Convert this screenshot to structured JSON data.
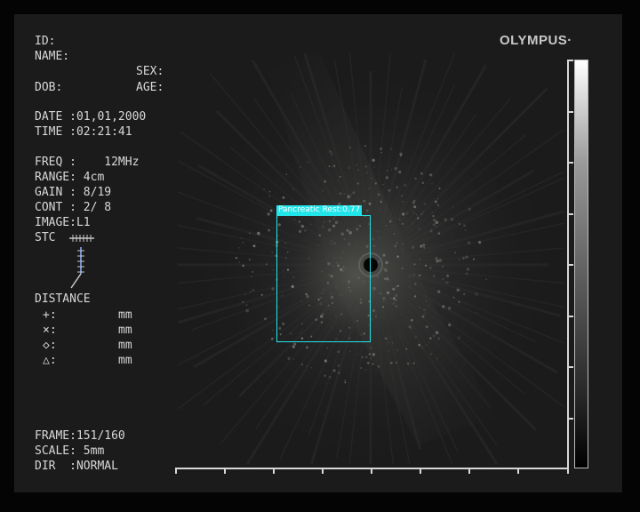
{
  "brand": {
    "logo": "OLYMPUS·"
  },
  "patient": {
    "id_label": "ID:",
    "name_label": "NAME:",
    "sex_label": "SEX:",
    "dob_label": "DOB:",
    "age_label": "AGE:",
    "date": "DATE :01,01,2000",
    "time": "TIME :02:21:41"
  },
  "settings": {
    "freq": "FREQ :    12MHz",
    "range": "RANGE: 4cm",
    "gain": "GAIN : 8/19",
    "cont": "CONT : 2/ 8",
    "image": "IMAGE:L1",
    "stc": "STC"
  },
  "distance": {
    "title": "DISTANCE",
    "rows": [
      {
        "symbol": "+:",
        "unit": "mm"
      },
      {
        "symbol": "×:",
        "unit": "mm"
      },
      {
        "symbol": "◇:",
        "unit": "mm"
      },
      {
        "symbol": "△:",
        "unit": "mm"
      }
    ]
  },
  "footer": {
    "frame": "FRAME:151/160",
    "scale": "SCALE: 5mm",
    "dir": "DIR  :NORMAL"
  },
  "detection": {
    "label": "Pancreatic Rest:0.77",
    "color": "#22e5ea"
  },
  "colors": {
    "text": "#d8d8d8",
    "panel": "#1b1b1b"
  }
}
